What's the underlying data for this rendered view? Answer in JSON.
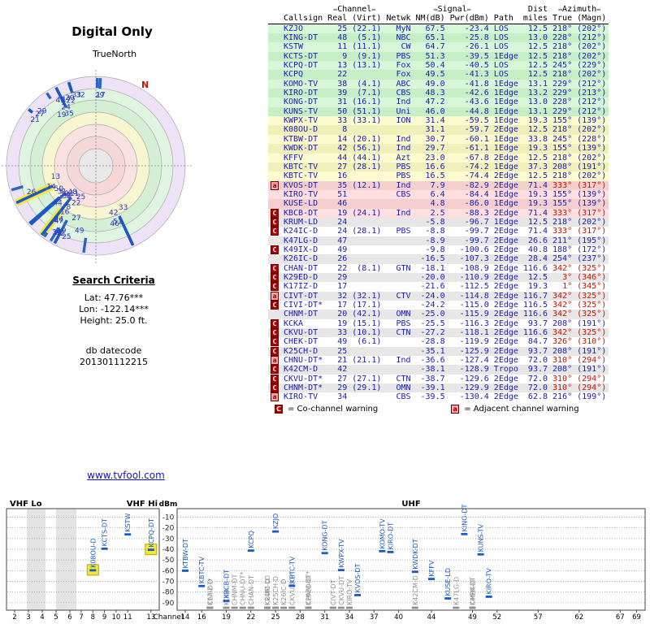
{
  "page": {
    "title": "Digital Only",
    "radar": {
      "north": "N",
      "true_north": "TrueNorth"
    },
    "search": {
      "heading": "Search Criteria",
      "lat": "Lat: 47.76***",
      "lon": "Lon: -122.14***",
      "height": "Height: 25.0 ft.",
      "datecode_label": "db datecode",
      "datecode": "201301112215"
    },
    "link": "www.tvfool.com",
    "legend": {
      "c_symbol": "C",
      "c_text": "= Co-channel warning",
      "a_symbol": "a",
      "a_text": "= Adjacent channel warning"
    },
    "table_headers": {
      "deco": "▬",
      "channel_group": "Channel",
      "signal_group": "Signal",
      "dist_group": "Dist",
      "azimuth_group": "Azimuth",
      "callsign": "Callsign",
      "real": "Real",
      "virt": "(Virt)",
      "netwk": "Netwk",
      "nm": "NM(dB)",
      "pwr": "Pwr(dBm)",
      "path": "Path",
      "miles": "miles",
      "true": "True",
      "magn": "(Magn)"
    },
    "colors": {
      "marker_blue": "#1b5ac2",
      "co_channel_red": "#aa0000",
      "adjacent_pink": "#f5a5a5",
      "highlight_yellow": "#f6e63c",
      "azimuth_north_red": "#c41200",
      "table_text_blue": "#1a1ab8"
    }
  },
  "stations": [
    {
      "callsign": "KZJO",
      "marker": "",
      "channel": 25,
      "virtual": "(22.1)",
      "network": "MyN",
      "nm_db": 67.5,
      "pwr_dbm": -23.4,
      "path": "LOS",
      "dist_miles": 12.5,
      "az_true": 218,
      "az_magn": 202
    },
    {
      "callsign": "KING-DT",
      "marker": "",
      "channel": 48,
      "virtual": "(5.1)",
      "network": "NBC",
      "nm_db": 65.1,
      "pwr_dbm": -25.8,
      "path": "LOS",
      "dist_miles": 13.0,
      "az_true": 228,
      "az_magn": 212
    },
    {
      "callsign": "KSTW",
      "marker": "",
      "channel": 11,
      "virtual": "(11.1)",
      "network": "CW",
      "nm_db": 64.7,
      "pwr_dbm": -26.1,
      "path": "LOS",
      "dist_miles": 12.5,
      "az_true": 218,
      "az_magn": 202
    },
    {
      "callsign": "KCTS-DT",
      "marker": "",
      "channel": 9,
      "virtual": "(9.1)",
      "network": "PBS",
      "nm_db": 51.3,
      "pwr_dbm": -39.5,
      "path": "1Edge",
      "dist_miles": 12.5,
      "az_true": 218,
      "az_magn": 202
    },
    {
      "callsign": "KCPQ-DT",
      "marker": "",
      "channel": 13,
      "virtual": "(13.1)",
      "network": "Fox",
      "nm_db": 50.4,
      "pwr_dbm": -40.5,
      "path": "LOS",
      "dist_miles": 12.5,
      "az_true": 245,
      "az_magn": 229,
      "highlight": true
    },
    {
      "callsign": "KCPQ",
      "marker": "",
      "channel": 22,
      "virtual": "",
      "network": "Fox",
      "nm_db": 49.5,
      "pwr_dbm": -41.3,
      "path": "LOS",
      "dist_miles": 12.5,
      "az_true": 218,
      "az_magn": 202
    },
    {
      "callsign": "KOMO-TV",
      "marker": "",
      "channel": 38,
      "virtual": "(4.1)",
      "network": "ABC",
      "nm_db": 49.0,
      "pwr_dbm": -41.8,
      "path": "1Edge",
      "dist_miles": 13.1,
      "az_true": 229,
      "az_magn": 212
    },
    {
      "callsign": "KIRO-DT",
      "marker": "",
      "channel": 39,
      "virtual": "(7.1)",
      "network": "CBS",
      "nm_db": 48.3,
      "pwr_dbm": -42.6,
      "path": "1Edge",
      "dist_miles": 13.2,
      "az_true": 229,
      "az_magn": 213
    },
    {
      "callsign": "KONG-DT",
      "marker": "",
      "channel": 31,
      "virtual": "(16.1)",
      "network": "Ind",
      "nm_db": 47.2,
      "pwr_dbm": -43.6,
      "path": "1Edge",
      "dist_miles": 13.0,
      "az_true": 228,
      "az_magn": 212
    },
    {
      "callsign": "KUNS-TV",
      "marker": "",
      "channel": 50,
      "virtual": "(51.1)",
      "network": "Uni",
      "nm_db": 46.0,
      "pwr_dbm": -44.8,
      "path": "1Edge",
      "dist_miles": 13.1,
      "az_true": 229,
      "az_magn": 212
    },
    {
      "callsign": "KWPX-TV",
      "marker": "",
      "channel": 33,
      "virtual": "(33.1)",
      "network": "ION",
      "nm_db": 31.4,
      "pwr_dbm": -59.5,
      "path": "1Edge",
      "dist_miles": 19.3,
      "az_true": 155,
      "az_magn": 139
    },
    {
      "callsign": "K08OU-D",
      "marker": "",
      "channel": 8,
      "virtual": "",
      "network": "",
      "nm_db": 31.1,
      "pwr_dbm": -59.7,
      "path": "2Edge",
      "dist_miles": 12.5,
      "az_true": 218,
      "az_magn": 202,
      "highlight": true
    },
    {
      "callsign": "KTBW-DT",
      "marker": "",
      "channel": 14,
      "virtual": "(20.1)",
      "network": "Ind",
      "nm_db": 30.7,
      "pwr_dbm": -60.1,
      "path": "1Edge",
      "dist_miles": 33.8,
      "az_true": 245,
      "az_magn": 228
    },
    {
      "callsign": "KWDK-DT",
      "marker": "",
      "channel": 42,
      "virtual": "(56.1)",
      "network": "Ind",
      "nm_db": 29.7,
      "pwr_dbm": -61.1,
      "path": "1Edge",
      "dist_miles": 19.3,
      "az_true": 155,
      "az_magn": 139
    },
    {
      "callsign": "KFFV",
      "marker": "",
      "channel": 44,
      "virtual": "(44.1)",
      "network": "Azt",
      "nm_db": 23.0,
      "pwr_dbm": -67.8,
      "path": "2Edge",
      "dist_miles": 12.5,
      "az_true": 218,
      "az_magn": 202
    },
    {
      "callsign": "KBTC-TV",
      "marker": "",
      "channel": 27,
      "virtual": "(28.1)",
      "network": "PBS",
      "nm_db": 16.6,
      "pwr_dbm": -74.2,
      "path": "1Edge",
      "dist_miles": 37.3,
      "az_true": 208,
      "az_magn": 191
    },
    {
      "callsign": "KBTC-TV",
      "marker": "",
      "channel": 16,
      "virtual": "",
      "network": "PBS",
      "nm_db": 16.5,
      "pwr_dbm": -74.4,
      "path": "2Edge",
      "dist_miles": 12.5,
      "az_true": 218,
      "az_magn": 202
    },
    {
      "callsign": "KVOS-DT",
      "marker": "a",
      "channel": 35,
      "virtual": "(12.1)",
      "network": "Ind",
      "nm_db": 7.9,
      "pwr_dbm": -82.9,
      "path": "2Edge",
      "dist_miles": 71.4,
      "az_true": 333,
      "az_magn": 317
    },
    {
      "callsign": "KIRO-TV",
      "marker": "",
      "channel": 51,
      "virtual": "",
      "network": "CBS",
      "nm_db": 6.4,
      "pwr_dbm": -84.4,
      "path": "1Edge",
      "dist_miles": 19.3,
      "az_true": 155,
      "az_magn": 139
    },
    {
      "callsign": "KUSE-LD",
      "marker": "",
      "channel": 46,
      "virtual": "",
      "network": "",
      "nm_db": 4.8,
      "pwr_dbm": -86.0,
      "path": "1Edge",
      "dist_miles": 19.3,
      "az_true": 155,
      "az_magn": 139
    },
    {
      "callsign": "KBCB-DT",
      "marker": "C",
      "channel": 19,
      "virtual": "(24.1)",
      "network": "Ind",
      "nm_db": 2.5,
      "pwr_dbm": -88.3,
      "path": "2Edge",
      "dist_miles": 71.4,
      "az_true": 333,
      "az_magn": 317
    },
    {
      "callsign": "KRUM-LD",
      "marker": "C",
      "channel": 24,
      "virtual": "",
      "network": "",
      "nm_db": -5.8,
      "pwr_dbm": -96.7,
      "path": "1Edge",
      "dist_miles": 12.5,
      "az_true": 218,
      "az_magn": 202
    },
    {
      "callsign": "K24IC-D",
      "marker": "C",
      "channel": 24,
      "virtual": "(28.1)",
      "network": "PBS",
      "nm_db": -8.8,
      "pwr_dbm": -99.7,
      "path": "2Edge",
      "dist_miles": 71.4,
      "az_true": 333,
      "az_magn": 317
    },
    {
      "callsign": "K47LG-D",
      "marker": "",
      "channel": 47,
      "virtual": "",
      "network": "",
      "nm_db": -8.9,
      "pwr_dbm": -99.7,
      "path": "2Edge",
      "dist_miles": 26.6,
      "az_true": 211,
      "az_magn": 195
    },
    {
      "callsign": "K49IX-D",
      "marker": "C",
      "channel": 49,
      "virtual": "",
      "network": "",
      "nm_db": -9.8,
      "pwr_dbm": -100.6,
      "path": "2Edge",
      "dist_miles": 40.8,
      "az_true": 188,
      "az_magn": 172
    },
    {
      "callsign": "K26IC-D",
      "marker": "",
      "channel": 26,
      "virtual": "",
      "network": "",
      "nm_db": -16.5,
      "pwr_dbm": -107.3,
      "path": "2Edge",
      "dist_miles": 28.4,
      "az_true": 254,
      "az_magn": 237
    },
    {
      "callsign": "CHAN-DT",
      "marker": "C",
      "channel": 22,
      "virtual": "(8.1)",
      "network": "GTN",
      "nm_db": -18.1,
      "pwr_dbm": -108.9,
      "path": "2Edge",
      "dist_miles": 116.6,
      "az_true": 342,
      "az_magn": 325
    },
    {
      "callsign": "K29ED-D",
      "marker": "C",
      "channel": 29,
      "virtual": "",
      "network": "",
      "nm_db": -20.0,
      "pwr_dbm": -110.9,
      "path": "2Edge",
      "dist_miles": 12.5,
      "az_true": 3,
      "az_magn": 346
    },
    {
      "callsign": "K17IZ-D",
      "marker": "C",
      "channel": 17,
      "virtual": "",
      "network": "",
      "nm_db": -21.6,
      "pwr_dbm": -112.5,
      "path": "2Edge",
      "dist_miles": 19.3,
      "az_true": 1,
      "az_magn": 345
    },
    {
      "callsign": "CIVT-DT",
      "marker": "a",
      "channel": 32,
      "virtual": "(32.1)",
      "network": "CTV",
      "nm_db": -24.0,
      "pwr_dbm": -114.8,
      "path": "2Edge",
      "dist_miles": 116.7,
      "az_true": 342,
      "az_magn": 325
    },
    {
      "callsign": "CIVI-DT*",
      "marker": "C",
      "channel": 17,
      "virtual": "(17.1)",
      "network": "",
      "nm_db": -24.2,
      "pwr_dbm": -115.0,
      "path": "2Edge",
      "dist_miles": 116.5,
      "az_true": 342,
      "az_magn": 325
    },
    {
      "callsign": "CHNM-DT",
      "marker": "",
      "channel": 20,
      "virtual": "(42.1)",
      "network": "OMN",
      "nm_db": -25.0,
      "pwr_dbm": -115.9,
      "path": "2Edge",
      "dist_miles": 116.6,
      "az_true": 342,
      "az_magn": 325
    },
    {
      "callsign": "KCKA",
      "marker": "C",
      "channel": 19,
      "virtual": "(15.1)",
      "network": "PBS",
      "nm_db": -25.5,
      "pwr_dbm": -116.3,
      "path": "2Edge",
      "dist_miles": 93.7,
      "az_true": 208,
      "az_magn": 191
    },
    {
      "callsign": "CKVU-DT",
      "marker": "C",
      "channel": 33,
      "virtual": "(10.1)",
      "network": "CTN",
      "nm_db": -27.2,
      "pwr_dbm": -118.1,
      "path": "2Edge",
      "dist_miles": 116.6,
      "az_true": 342,
      "az_magn": 325
    },
    {
      "callsign": "CHEK-DT",
      "marker": "C",
      "channel": 49,
      "virtual": "(6.1)",
      "network": "",
      "nm_db": -28.8,
      "pwr_dbm": -119.9,
      "path": "2Edge",
      "dist_miles": 84.7,
      "az_true": 326,
      "az_magn": 310
    },
    {
      "callsign": "K25CH-D",
      "marker": "C",
      "channel": 25,
      "virtual": "",
      "network": "",
      "nm_db": -35.1,
      "pwr_dbm": -125.9,
      "path": "2Edge",
      "dist_miles": 93.7,
      "az_true": 208,
      "az_magn": 191
    },
    {
      "callsign": "CHNU-DT*",
      "marker": "a",
      "channel": 21,
      "virtual": "(21.1)",
      "network": "Ind",
      "nm_db": -36.6,
      "pwr_dbm": -127.4,
      "path": "2Edge",
      "dist_miles": 72.0,
      "az_true": 310,
      "az_magn": 294
    },
    {
      "callsign": "K42CM-D",
      "marker": "C",
      "channel": 42,
      "virtual": "",
      "network": "",
      "nm_db": -38.1,
      "pwr_dbm": -128.9,
      "path": "Tropo",
      "dist_miles": 93.7,
      "az_true": 208,
      "az_magn": 191
    },
    {
      "callsign": "CKVU-DT*",
      "marker": "C",
      "channel": 27,
      "virtual": "(27.1)",
      "network": "CTN",
      "nm_db": -38.7,
      "pwr_dbm": -129.6,
      "path": "2Edge",
      "dist_miles": 72.0,
      "az_true": 310,
      "az_magn": 294
    },
    {
      "callsign": "CHNM-DT*",
      "marker": "C",
      "channel": 29,
      "virtual": "(29.1)",
      "network": "OMN",
      "nm_db": -39.1,
      "pwr_dbm": -129.9,
      "path": "2Edge",
      "dist_miles": 72.0,
      "az_true": 310,
      "az_magn": 294
    },
    {
      "callsign": "KIRO-TV",
      "marker": "a",
      "channel": 34,
      "virtual": "",
      "network": "CBS",
      "nm_db": -39.5,
      "pwr_dbm": -130.4,
      "path": "2Edge",
      "dist_miles": 62.8,
      "az_true": 216,
      "az_magn": 199
    }
  ],
  "chart_data": [
    {
      "type": "radar",
      "title": "Digital Only",
      "orientation": "true north up",
      "north_label": "N",
      "angle_source": "stations[].az_true",
      "value_source": "stations[].nm_db",
      "label_source": "stations[].channel"
    },
    {
      "type": "scatter",
      "xlabel": "Channel",
      "ylabel": "dBm",
      "yticks": [
        -10,
        -20,
        -30,
        -40,
        -50,
        -60,
        -70,
        -80,
        -90
      ],
      "x_sections": [
        {
          "label": "VHF Lo",
          "ticks": [
            2,
            3,
            4,
            5,
            6
          ]
        },
        {
          "label": "VHF Hi",
          "ticks": [
            7,
            8,
            9,
            10,
            11,
            13
          ]
        },
        {
          "label": "UHF",
          "ticks": [
            14,
            16,
            19,
            22,
            25,
            28,
            31,
            34,
            37,
            40,
            44,
            49,
            52,
            57,
            62,
            67,
            69
          ]
        }
      ],
      "x_source": "stations[].channel",
      "y_source": "stations[].pwr_dbm",
      "label_source": "stations[].callsign"
    }
  ]
}
